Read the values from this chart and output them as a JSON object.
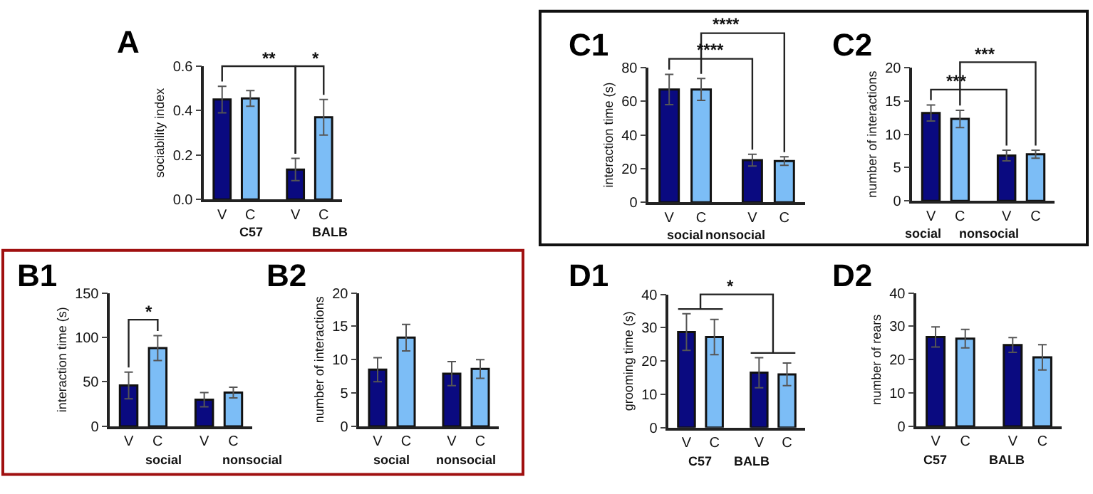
{
  "chart_data": [
    {
      "type": "bar",
      "title": "A",
      "ylabel": "sociability index",
      "categories": [
        "V",
        "C",
        "V",
        "C"
      ],
      "values": [
        0.45,
        0.455,
        0.135,
        0.37
      ],
      "errors": [
        0.06,
        0.035,
        0.05,
        0.08
      ],
      "colors": [
        "#0a0a80",
        "#7cbdf6",
        "#0a0a80",
        "#7cbdf6"
      ],
      "ylim": [
        0,
        0.6
      ],
      "yticks": [
        {
          "value": 0,
          "label": "0.0"
        },
        {
          "value": 0.2,
          "label": "0.2"
        },
        {
          "value": 0.4,
          "label": "0.4"
        },
        {
          "value": 0.6,
          "label": "0.6"
        }
      ],
      "annotations": [
        "C57",
        "BALB",
        "**",
        "*"
      ]
    },
    {
      "type": "bar",
      "title": "C1",
      "ylabel": "interaction time (s)",
      "categories": [
        "V",
        "C",
        "V",
        "C"
      ],
      "values": [
        67,
        67,
        25,
        24.5
      ],
      "errors": [
        9,
        6.5,
        3.5,
        2.5
      ],
      "colors": [
        "#0a0a80",
        "#7cbdf6",
        "#0a0a80",
        "#7cbdf6"
      ],
      "ylim": [
        0,
        80
      ],
      "yticks": [
        0,
        20,
        40,
        60,
        80
      ],
      "annotations": [
        "social",
        "nonsocial",
        "****",
        "****"
      ]
    },
    {
      "type": "bar",
      "title": "C2",
      "ylabel": "number of interactions",
      "categories": [
        "V",
        "C",
        "V",
        "C"
      ],
      "values": [
        13.2,
        12.3,
        6.8,
        7.0
      ],
      "errors": [
        1.2,
        1.3,
        0.8,
        0.6
      ],
      "colors": [
        "#0a0a80",
        "#7cbdf6",
        "#0a0a80",
        "#7cbdf6"
      ],
      "ylim": [
        0,
        20
      ],
      "yticks": [
        0,
        5,
        10,
        15,
        20
      ],
      "annotations": [
        "social",
        "nonsocial",
        "***",
        "***"
      ]
    },
    {
      "type": "bar",
      "title": "B1",
      "ylabel": "interaction time (s)",
      "categories": [
        "V",
        "C",
        "V",
        "C"
      ],
      "values": [
        46,
        88,
        30,
        38
      ],
      "errors": [
        15,
        14,
        8,
        6
      ],
      "colors": [
        "#0a0a80",
        "#7cbdf6",
        "#0a0a80",
        "#7cbdf6"
      ],
      "ylim": [
        0,
        150
      ],
      "yticks": [
        0,
        50,
        100,
        150
      ],
      "annotations": [
        "social",
        "nonsocial",
        "*"
      ]
    },
    {
      "type": "bar",
      "title": "B2",
      "ylabel": "number of interactions",
      "categories": [
        "V",
        "C",
        "V",
        "C"
      ],
      "values": [
        8.5,
        13.3,
        7.9,
        8.6
      ],
      "errors": [
        1.8,
        2.0,
        1.8,
        1.4
      ],
      "colors": [
        "#0a0a80",
        "#7cbdf6",
        "#0a0a80",
        "#7cbdf6"
      ],
      "ylim": [
        0,
        20
      ],
      "yticks": [
        0,
        5,
        10,
        15,
        20
      ],
      "annotations": [
        "social",
        "nonsocial"
      ]
    },
    {
      "type": "bar",
      "title": "D1",
      "ylabel": "grooming time (s)",
      "categories": [
        "V",
        "C",
        "V",
        "C"
      ],
      "values": [
        28.7,
        27.2,
        16.5,
        16.0
      ],
      "errors": [
        5.5,
        5.3,
        4.5,
        3.4
      ],
      "colors": [
        "#0a0a80",
        "#7cbdf6",
        "#0a0a80",
        "#7cbdf6"
      ],
      "ylim": [
        0,
        40
      ],
      "yticks": [
        0,
        10,
        20,
        30,
        40
      ],
      "annotations": [
        "C57",
        "BALB",
        "*"
      ]
    },
    {
      "type": "bar",
      "title": "D2",
      "ylabel": "number of rears",
      "categories": [
        "V",
        "C",
        "V",
        "C"
      ],
      "values": [
        26.8,
        26.3,
        24.4,
        20.7
      ],
      "errors": [
        3.0,
        2.8,
        2.2,
        3.8
      ],
      "colors": [
        "#0a0a80",
        "#7cbdf6",
        "#0a0a80",
        "#7cbdf6"
      ],
      "ylim": [
        0,
        40
      ],
      "yticks": [
        0,
        10,
        20,
        30,
        40
      ],
      "annotations": [
        "C57",
        "BALB"
      ]
    }
  ]
}
